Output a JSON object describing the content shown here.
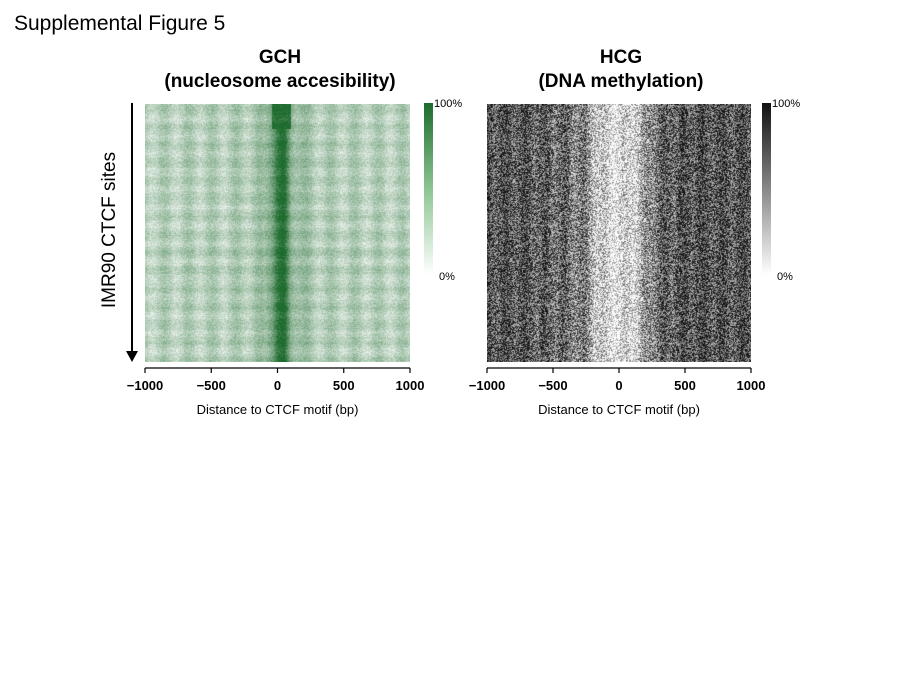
{
  "figure_title": "Supplemental Figure 5",
  "ylabel": "IMR90 CTCF sites",
  "chart_data": [
    {
      "type": "heatmap",
      "title": "GCH\n(nucleosome accesibility)",
      "title_line1": "GCH",
      "title_line2": "(nucleosome accesibility)",
      "xlabel": "Distance to CTCF motif (bp)",
      "ylabel": "IMR90 CTCF sites",
      "xlim": [
        -1000,
        1000
      ],
      "xticks": [
        -1000,
        -500,
        0,
        500,
        1000
      ],
      "xtick_labels": [
        "−1000",
        "−500",
        "0",
        "500",
        "1000"
      ],
      "colorbar": {
        "min_label": "0%",
        "max_label": "100%",
        "min_color": "#ffffff",
        "max_color": "#1e6b2e"
      },
      "profile_description": "strong accessibility peak centred just right of 0 with periodic nucleosome-phased bands on both sides",
      "profile_x": [
        -1000,
        -800,
        -600,
        -400,
        -250,
        -100,
        0,
        50,
        100,
        250,
        400,
        600,
        800,
        1000
      ],
      "profile_values": [
        0.32,
        0.32,
        0.33,
        0.33,
        0.35,
        0.4,
        0.9,
        0.95,
        0.55,
        0.36,
        0.33,
        0.33,
        0.32,
        0.32
      ]
    },
    {
      "type": "heatmap",
      "title": "HCG\n(DNA methylation)",
      "title_line1": "HCG",
      "title_line2": "(DNA methylation)",
      "xlabel": "Distance to CTCF motif (bp)",
      "ylabel": "",
      "xlim": [
        -1000,
        1000
      ],
      "xticks": [
        -1000,
        -500,
        0,
        500,
        1000
      ],
      "xtick_labels": [
        "−1000",
        "−500",
        "0",
        "500",
        "1000"
      ],
      "colorbar": {
        "min_label": "0%",
        "max_label": "100%",
        "min_color": "#ffffff",
        "max_color": "#111111"
      },
      "profile_description": "methylation depleted in a broad window around the CTCF motif, high at the flanks",
      "profile_x": [
        -1000,
        -800,
        -600,
        -400,
        -250,
        -150,
        0,
        150,
        250,
        400,
        600,
        800,
        1000
      ],
      "profile_values": [
        0.75,
        0.72,
        0.68,
        0.62,
        0.5,
        0.2,
        0.1,
        0.25,
        0.55,
        0.7,
        0.75,
        0.72,
        0.75
      ]
    }
  ]
}
